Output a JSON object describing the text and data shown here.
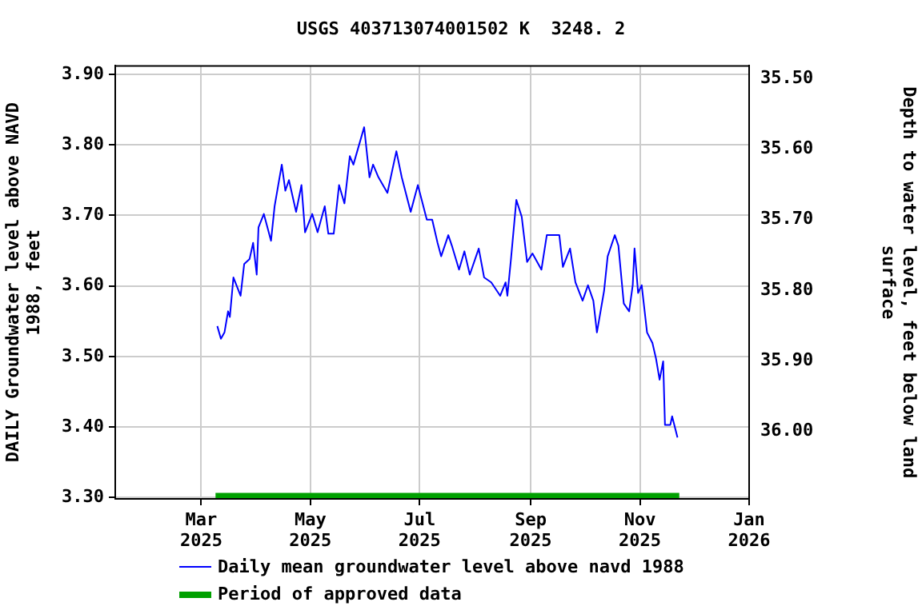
{
  "chart_data": {
    "type": "line",
    "title": "USGS 403713074001502 K  3248. 2",
    "ylabel": "DAILY Groundwater level above NAVD 1988, feet",
    "y2label": "Depth to water level, feet below land surface",
    "ylim": [
      3.298,
      3.912
    ],
    "yticks": [
      {
        "value": 3.3,
        "label": "3.30"
      },
      {
        "value": 3.4,
        "label": "3.40"
      },
      {
        "value": 3.5,
        "label": "3.50"
      },
      {
        "value": 3.6,
        "label": "3.60"
      },
      {
        "value": 3.7,
        "label": "3.70"
      },
      {
        "value": 3.8,
        "label": "3.80"
      },
      {
        "value": 3.9,
        "label": "3.90"
      }
    ],
    "y2lim": [
      36.096,
      35.482
    ],
    "y2ticks": [
      {
        "value": 35.5,
        "label": "35.50"
      },
      {
        "value": 35.6,
        "label": "35.60"
      },
      {
        "value": 35.7,
        "label": "35.70"
      },
      {
        "value": 35.8,
        "label": "35.80"
      },
      {
        "value": 35.9,
        "label": "35.90"
      },
      {
        "value": 36.0,
        "label": "36.00"
      }
    ],
    "xlim": [
      "2025-01-12",
      "2026-01-01"
    ],
    "xticks": [
      {
        "value": "2025-03-01",
        "label": "Mar 2025"
      },
      {
        "value": "2025-05-01",
        "label": "May 2025"
      },
      {
        "value": "2025-07-01",
        "label": "Jul 2025"
      },
      {
        "value": "2025-09-01",
        "label": "Sep 2025"
      },
      {
        "value": "2025-11-01",
        "label": "Nov 2025"
      },
      {
        "value": "2026-01-01",
        "label": "Jan 2026"
      }
    ],
    "grid": true,
    "legend": "bottom",
    "marker": "none",
    "line_style": "solid",
    "series": [
      {
        "name": "Daily mean groundwater level above navd 1988",
        "color": "#0000ff",
        "x": [
          "2025-03-10",
          "2025-03-12",
          "2025-03-14",
          "2025-03-16",
          "2025-03-17",
          "2025-03-19",
          "2025-03-23",
          "2025-03-25",
          "2025-03-28",
          "2025-03-30",
          "2025-04-01",
          "2025-04-02",
          "2025-04-05",
          "2025-04-09",
          "2025-04-11",
          "2025-04-15",
          "2025-04-17",
          "2025-04-19",
          "2025-04-23",
          "2025-04-26",
          "2025-04-28",
          "2025-05-02",
          "2025-05-05",
          "2025-05-09",
          "2025-05-11",
          "2025-05-14",
          "2025-05-17",
          "2025-05-20",
          "2025-05-23",
          "2025-05-25",
          "2025-05-31",
          "2025-06-03",
          "2025-06-05",
          "2025-06-08",
          "2025-06-13",
          "2025-06-18",
          "2025-06-21",
          "2025-06-26",
          "2025-06-30",
          "2025-07-05",
          "2025-07-08",
          "2025-07-11",
          "2025-07-13",
          "2025-07-17",
          "2025-07-19",
          "2025-07-23",
          "2025-07-26",
          "2025-07-29",
          "2025-08-03",
          "2025-08-06",
          "2025-08-10",
          "2025-08-15",
          "2025-08-18",
          "2025-08-19",
          "2025-08-21",
          "2025-08-24",
          "2025-08-27",
          "2025-08-30",
          "2025-09-02",
          "2025-09-07",
          "2025-09-10",
          "2025-09-13",
          "2025-09-17",
          "2025-09-19",
          "2025-09-23",
          "2025-09-26",
          "2025-09-30",
          "2025-10-03",
          "2025-10-06",
          "2025-10-08",
          "2025-10-12",
          "2025-10-14",
          "2025-10-18",
          "2025-10-20",
          "2025-10-23",
          "2025-10-26",
          "2025-10-28",
          "2025-10-29",
          "2025-10-31",
          "2025-11-02",
          "2025-11-05",
          "2025-11-08",
          "2025-11-10",
          "2025-11-12",
          "2025-11-14",
          "2025-11-15",
          "2025-11-18",
          "2025-11-19",
          "2025-11-22"
        ],
        "values": [
          3.543,
          3.525,
          3.534,
          3.564,
          3.556,
          3.612,
          3.586,
          3.631,
          3.638,
          3.661,
          3.616,
          3.683,
          3.702,
          3.664,
          3.713,
          3.772,
          3.735,
          3.75,
          3.705,
          3.743,
          3.676,
          3.702,
          3.676,
          3.713,
          3.674,
          3.674,
          3.743,
          3.717,
          3.784,
          3.772,
          3.825,
          3.754,
          3.772,
          3.754,
          3.732,
          3.791,
          3.754,
          3.705,
          3.743,
          3.694,
          3.694,
          3.661,
          3.642,
          3.672,
          3.657,
          3.623,
          3.649,
          3.616,
          3.653,
          3.612,
          3.605,
          3.586,
          3.605,
          3.586,
          3.638,
          3.722,
          3.698,
          3.634,
          3.646,
          3.623,
          3.672,
          3.672,
          3.672,
          3.627,
          3.653,
          3.605,
          3.579,
          3.601,
          3.579,
          3.534,
          3.593,
          3.642,
          3.672,
          3.657,
          3.575,
          3.564,
          3.601,
          3.653,
          3.59,
          3.601,
          3.534,
          3.519,
          3.497,
          3.467,
          3.493,
          3.403,
          3.403,
          3.415,
          3.385
        ]
      },
      {
        "name": "Period of approved data",
        "color": "#00a000",
        "x": [
          "2025-03-09",
          "2025-11-23"
        ],
        "values": [
          3.302,
          3.302
        ]
      }
    ]
  }
}
